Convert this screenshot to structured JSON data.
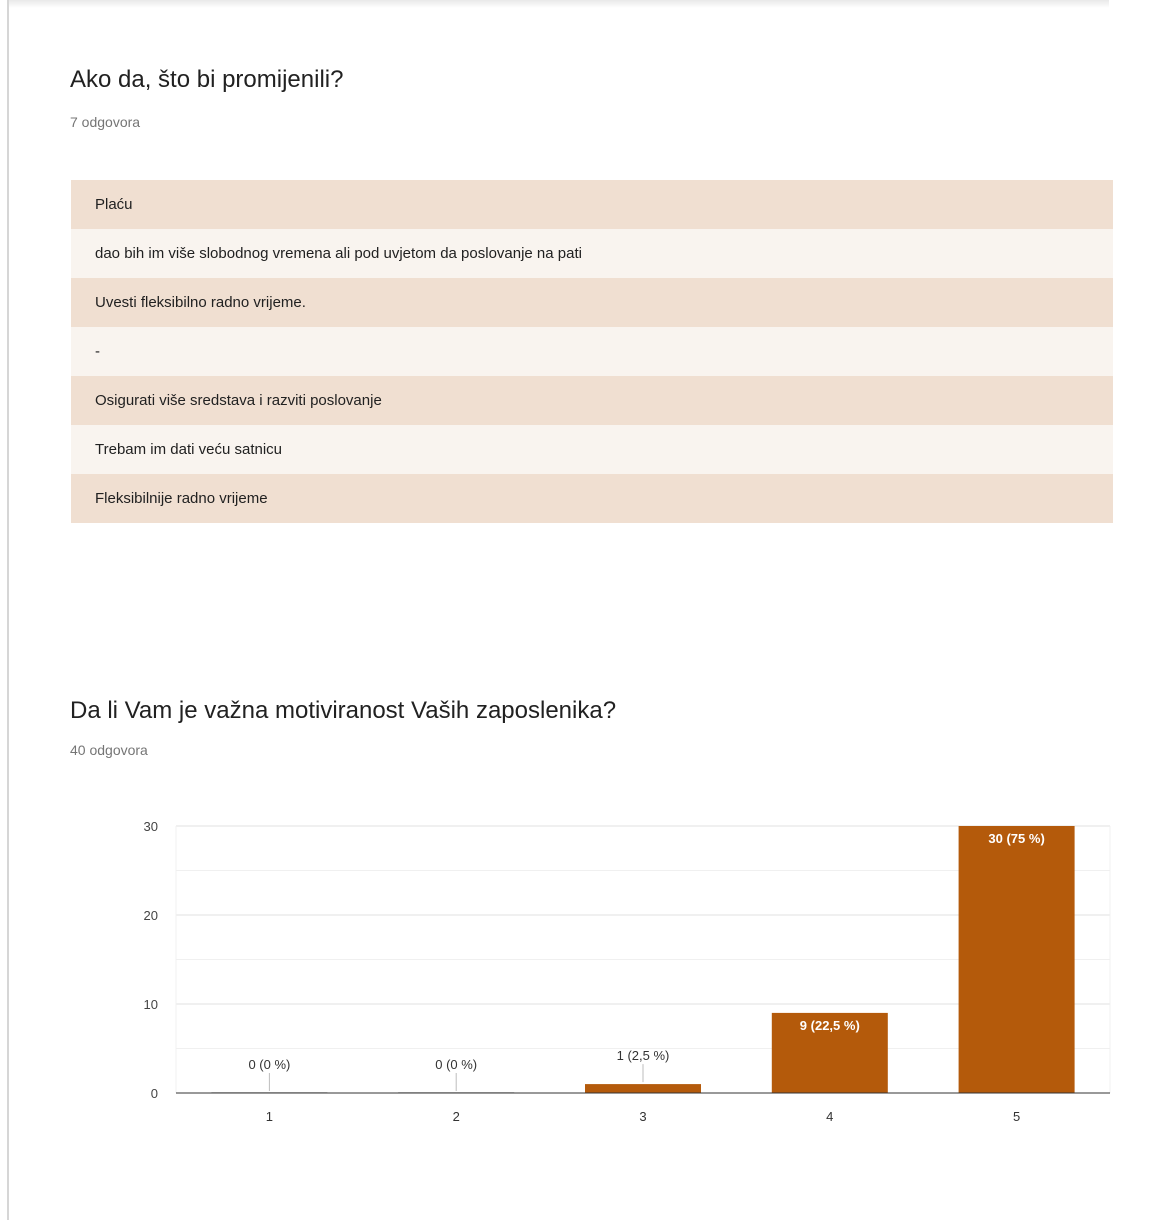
{
  "question1": {
    "title": "Ako da, što bi promijenili?",
    "response_count": "7 odgovora",
    "answers": [
      "Plaću",
      "dao bih im više slobodnog vremena ali pod uvjetom da poslovanje na pati",
      "Uvesti fleksibilno radno vrijeme.",
      "-",
      "Osigurati više sredstava i razviti poslovanje",
      "Trebam im dati veću satnicu",
      "Fleksibilnije radno vrijeme"
    ]
  },
  "question2": {
    "title": "Da li Vam je važna motiviranost Vaših zaposlenika?",
    "response_count": "40 odgovora"
  },
  "colors": {
    "bar": "#b45a0b",
    "row_odd": "#f0dfd1",
    "row_even": "#f9f4ef"
  },
  "chart_data": {
    "type": "bar",
    "categories": [
      "1",
      "2",
      "3",
      "4",
      "5"
    ],
    "values": [
      0,
      0,
      1,
      9,
      30
    ],
    "data_labels": [
      "0 (0 %)",
      "0 (0 %)",
      "1 (2,5 %)",
      "9 (22,5 %)",
      "30 (75 %)"
    ],
    "yticks": [
      0,
      10,
      20,
      30
    ],
    "ylim": [
      0,
      30
    ],
    "grid": true,
    "title": "",
    "xlabel": "",
    "ylabel": ""
  }
}
